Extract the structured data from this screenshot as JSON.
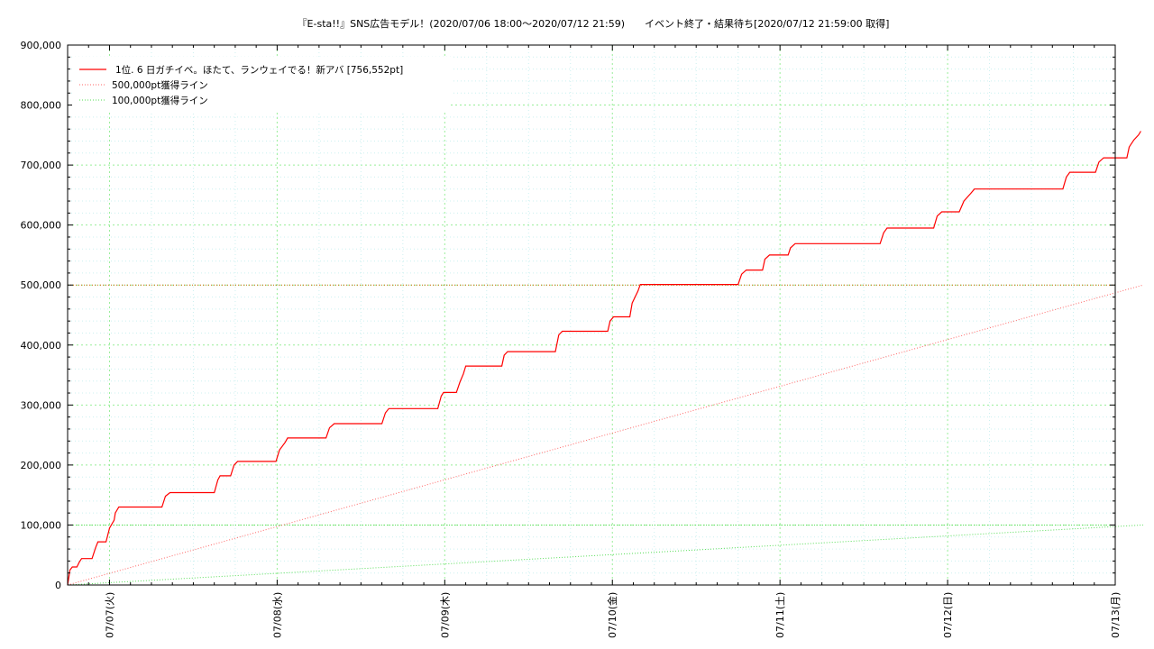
{
  "chart_data": {
    "type": "line",
    "title": "『E-sta!!』SNS広告モデル！(2020/07/06 18:00〜2020/07/12 21:59)　　イベント終了・結果待ち[2020/07/12 21:59:00 取得]",
    "x_range": [
      "2020-07-06T18:00",
      "2020-07-13T00:00"
    ],
    "ylim": [
      0,
      900000
    ],
    "y_ticks": [
      0,
      100000,
      200000,
      300000,
      400000,
      500000,
      600000,
      700000,
      800000,
      900000
    ],
    "y_tick_labels": [
      "0",
      "100,000",
      "200,000",
      "300,000",
      "400,000",
      "500,000",
      "600,000",
      "700,000",
      "800,000",
      "900,000"
    ],
    "x_ticks": [
      "2020-07-07T00:00",
      "2020-07-08T00:00",
      "2020-07-09T00:00",
      "2020-07-10T00:00",
      "2020-07-11T00:00",
      "2020-07-12T00:00",
      "2020-07-13T00:00"
    ],
    "x_tick_labels": [
      "07/07(火)",
      "07/08(水)",
      "07/09(木)",
      "07/10(金)",
      "07/11(土)",
      "07/12(日)",
      "07/13(月)"
    ],
    "grid": true,
    "legend_position": "top-left",
    "series": [
      {
        "name": "1位. 6 日ガチイベ。ほたて、ランウェイでる！新アバ [756,552pt]",
        "color": "#ff0000",
        "style": "solid",
        "points": [
          [
            "2020-07-06T18:00",
            0
          ],
          [
            "2020-07-06T18:20",
            25000
          ],
          [
            "2020-07-06T18:40",
            30000
          ],
          [
            "2020-07-06T19:20",
            30000
          ],
          [
            "2020-07-06T19:40",
            38000
          ],
          [
            "2020-07-06T20:00",
            44000
          ],
          [
            "2020-07-06T21:30",
            44000
          ],
          [
            "2020-07-06T22:00",
            62000
          ],
          [
            "2020-07-06T22:20",
            72000
          ],
          [
            "2020-07-06T23:30",
            72000
          ],
          [
            "2020-07-07T00:00",
            95000
          ],
          [
            "2020-07-07T00:40",
            108000
          ],
          [
            "2020-07-07T00:50",
            120000
          ],
          [
            "2020-07-07T01:20",
            130000
          ],
          [
            "2020-07-07T07:30",
            130000
          ],
          [
            "2020-07-07T08:00",
            148000
          ],
          [
            "2020-07-07T08:40",
            154000
          ],
          [
            "2020-07-07T15:00",
            154000
          ],
          [
            "2020-07-07T15:30",
            175000
          ],
          [
            "2020-07-07T15:50",
            182000
          ],
          [
            "2020-07-07T17:20",
            182000
          ],
          [
            "2020-07-07T17:50",
            200000
          ],
          [
            "2020-07-07T18:20",
            206000
          ],
          [
            "2020-07-07T23:50",
            206000
          ],
          [
            "2020-07-08T00:20",
            225000
          ],
          [
            "2020-07-08T01:10",
            238000
          ],
          [
            "2020-07-08T01:30",
            245000
          ],
          [
            "2020-07-08T07:00",
            245000
          ],
          [
            "2020-07-08T07:30",
            262000
          ],
          [
            "2020-07-08T08:10",
            269000
          ],
          [
            "2020-07-08T15:00",
            269000
          ],
          [
            "2020-07-08T15:30",
            287000
          ],
          [
            "2020-07-08T16:00",
            294000
          ],
          [
            "2020-07-08T23:00",
            294000
          ],
          [
            "2020-07-08T23:30",
            315000
          ],
          [
            "2020-07-08T23:50",
            321000
          ],
          [
            "2020-07-09T01:40",
            321000
          ],
          [
            "2020-07-09T02:10",
            338000
          ],
          [
            "2020-07-09T02:40",
            352000
          ],
          [
            "2020-07-09T03:00",
            365000
          ],
          [
            "2020-07-09T08:10",
            365000
          ],
          [
            "2020-07-09T08:30",
            383000
          ],
          [
            "2020-07-09T09:00",
            389000
          ],
          [
            "2020-07-09T15:50",
            389000
          ],
          [
            "2020-07-09T16:20",
            417000
          ],
          [
            "2020-07-09T16:50",
            423000
          ],
          [
            "2020-07-09T23:20",
            423000
          ],
          [
            "2020-07-09T23:40",
            440000
          ],
          [
            "2020-07-10T00:10",
            447000
          ],
          [
            "2020-07-10T02:30",
            447000
          ],
          [
            "2020-07-10T02:50",
            470000
          ],
          [
            "2020-07-10T03:40",
            490000
          ],
          [
            "2020-07-10T04:00",
            501000
          ],
          [
            "2020-07-10T18:00",
            501000
          ],
          [
            "2020-07-10T18:30",
            518000
          ],
          [
            "2020-07-10T19:10",
            525000
          ],
          [
            "2020-07-10T21:30",
            525000
          ],
          [
            "2020-07-10T21:50",
            543000
          ],
          [
            "2020-07-10T22:30",
            550000
          ],
          [
            "2020-07-11T01:10",
            550000
          ],
          [
            "2020-07-11T01:30",
            562000
          ],
          [
            "2020-07-11T02:10",
            569000
          ],
          [
            "2020-07-11T14:20",
            569000
          ],
          [
            "2020-07-11T14:50",
            587000
          ],
          [
            "2020-07-11T15:20",
            595000
          ],
          [
            "2020-07-11T22:00",
            595000
          ],
          [
            "2020-07-11T22:30",
            615000
          ],
          [
            "2020-07-11T23:10",
            622000
          ],
          [
            "2020-07-12T01:40",
            622000
          ],
          [
            "2020-07-12T02:20",
            640000
          ],
          [
            "2020-07-12T03:20",
            653000
          ],
          [
            "2020-07-12T03:50",
            660000
          ],
          [
            "2020-07-12T16:30",
            660000
          ],
          [
            "2020-07-12T17:00",
            680000
          ],
          [
            "2020-07-12T17:30",
            688000
          ],
          [
            "2020-07-12T21:10",
            688000
          ],
          [
            "2020-07-12T21:40",
            705000
          ],
          [
            "2020-07-12T22:20",
            712000
          ],
          [
            "2020-07-13T01:40",
            712000
          ],
          [
            "2020-07-13T02:00",
            730000
          ],
          [
            "2020-07-13T02:40",
            742000
          ],
          [
            "2020-07-13T03:20",
            750000
          ],
          [
            "2020-07-13T03:40",
            756552
          ]
        ]
      },
      {
        "name": "500,000pt獲得ライン",
        "color": "#ff6666",
        "style": "dotted",
        "points": [
          [
            "2020-07-06T18:00",
            0
          ],
          [
            "2020-07-13T04:00",
            500000
          ]
        ]
      },
      {
        "name": "100,000pt獲得ライン",
        "color": "#55dd55",
        "style": "dotted",
        "points": [
          [
            "2020-07-06T18:00",
            0
          ],
          [
            "2020-07-13T04:00",
            100000
          ]
        ]
      }
    ],
    "reference_lines": [
      {
        "y": 500000,
        "color": "#cc6600",
        "style": "dotted"
      },
      {
        "y": 100000,
        "color": "#55dd55",
        "style": "dotted"
      }
    ]
  }
}
